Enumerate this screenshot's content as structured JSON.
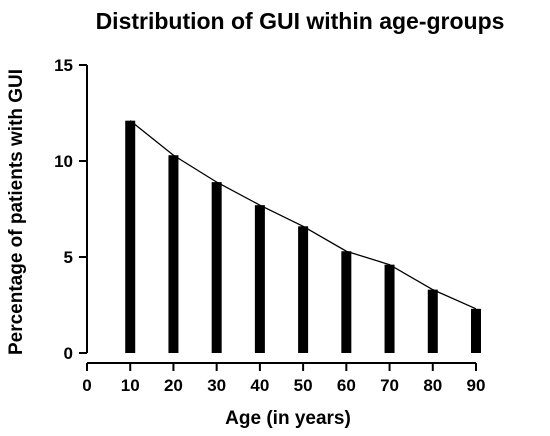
{
  "chart_data": {
    "type": "bar",
    "title": "Distribution of GUI within age-groups",
    "xlabel": "Age (in years)",
    "ylabel": "Percentage of patients with GUI",
    "x": [
      10,
      20,
      30,
      40,
      50,
      60,
      70,
      80,
      90
    ],
    "values": [
      12.1,
      10.3,
      8.9,
      7.7,
      6.6,
      5.3,
      4.6,
      3.3,
      2.3
    ],
    "xlim": [
      0,
      90
    ],
    "ylim": [
      0,
      15
    ],
    "xticks": [
      "0",
      "10",
      "20",
      "30",
      "40",
      "50",
      "60",
      "70",
      "80",
      "90"
    ],
    "yticks": [
      "0",
      "5",
      "10",
      "15"
    ],
    "overlay_line": true,
    "grid": false,
    "bar_color": "#000000",
    "line_color": "#000000"
  }
}
